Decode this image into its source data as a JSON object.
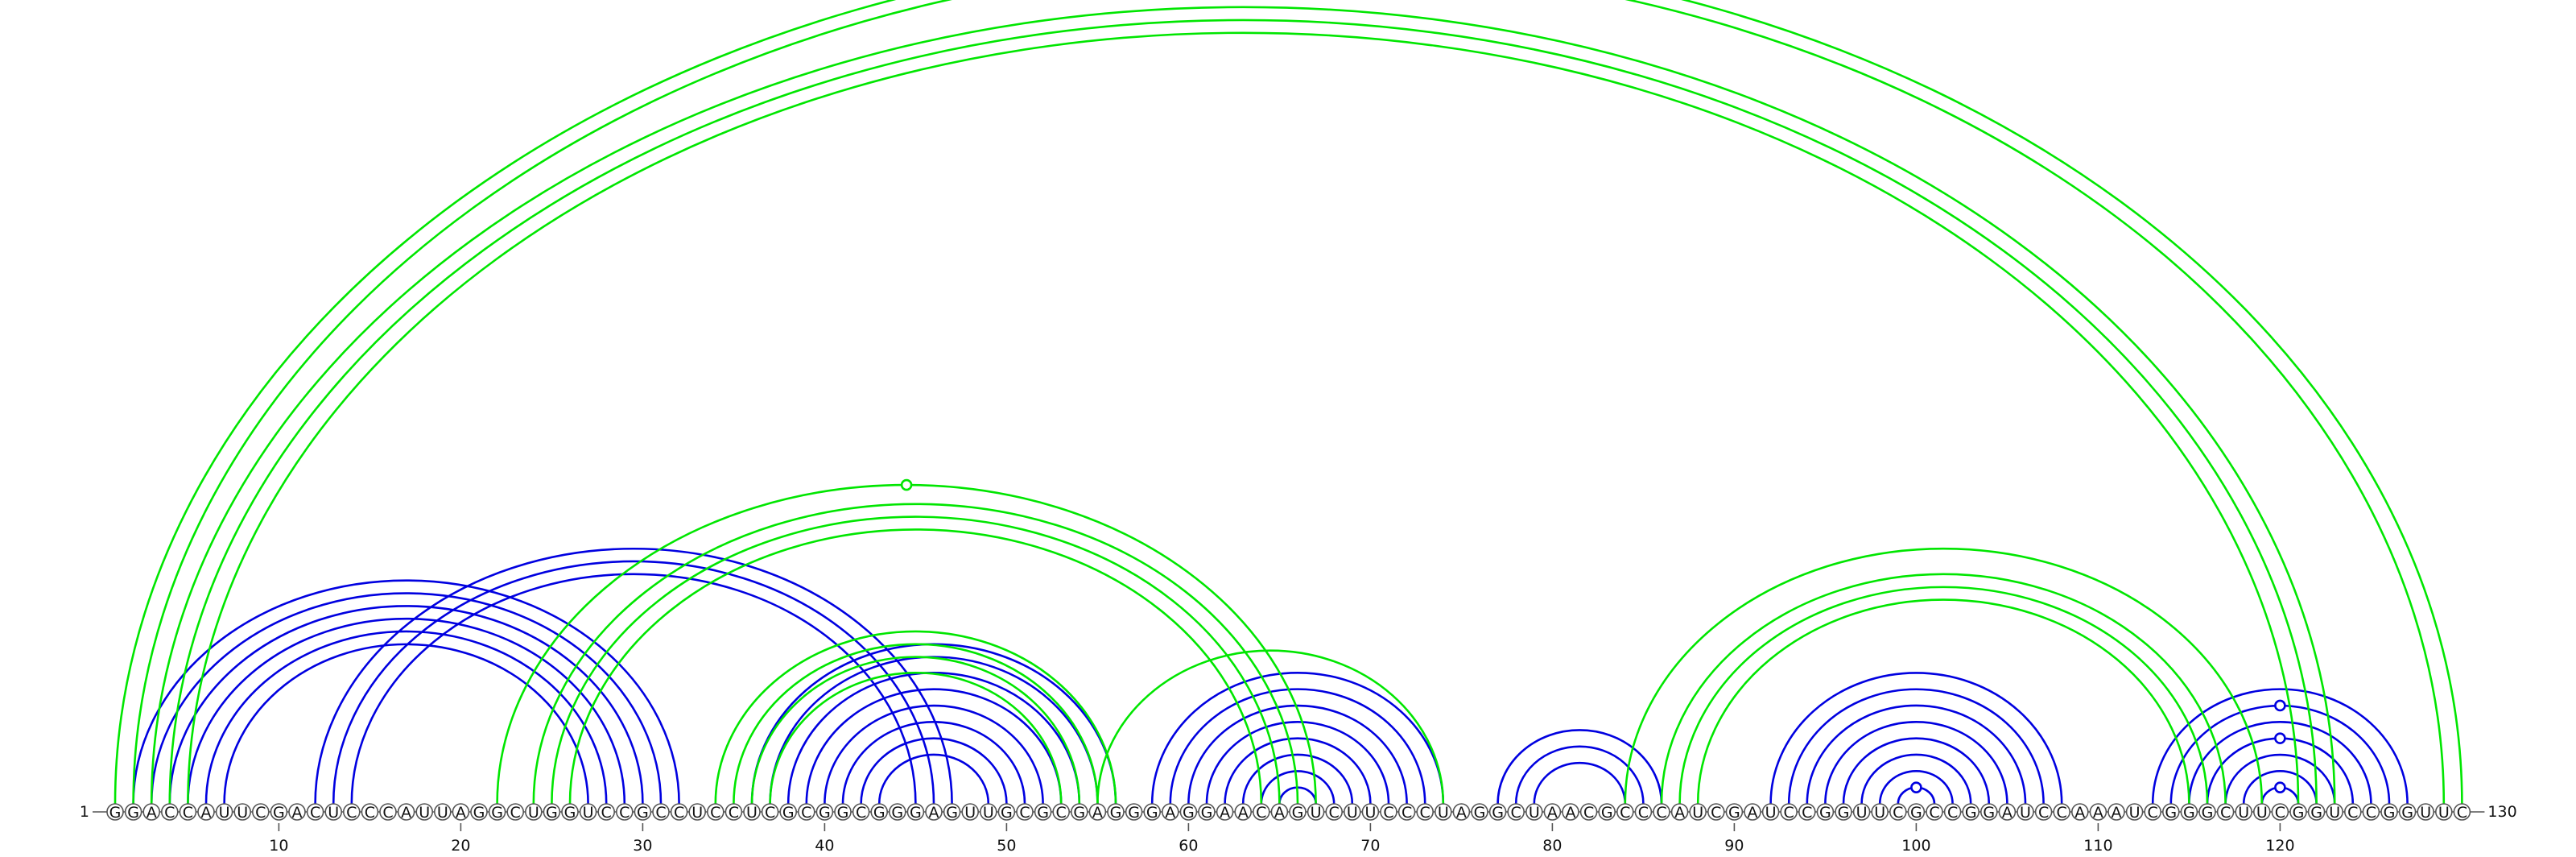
{
  "sequence": "GGACCAUUCGACUCCCAUUAGGCUGGUCCGCCUCCUCGCGGCGGGAGUUGCGCGAGGGAGGAACAGUCUUCCCUAGGCUAACGCCCAUCGAUCCGGUUCGCCGGAUCCAAAUCGGGCUUCGGUCCGGUUC",
  "start_label": "1",
  "end_label": "130",
  "tick_labels": [
    "10",
    "20",
    "30",
    "40",
    "50",
    "60",
    "70",
    "80",
    "90",
    "100",
    "110",
    "120"
  ],
  "colors": {
    "secondary": "#0000e0",
    "tertiary": "#00e600"
  },
  "chart_data": {
    "type": "arc-diagram",
    "length": 130,
    "tick_every": 10,
    "blue_pairs": [
      [
        2,
        32
      ],
      [
        3,
        31
      ],
      [
        4,
        30
      ],
      [
        5,
        29
      ],
      [
        6,
        28
      ],
      [
        7,
        27
      ],
      [
        12,
        47
      ],
      [
        13,
        46
      ],
      [
        14,
        45
      ],
      [
        36,
        56
      ],
      [
        37,
        55
      ],
      [
        38,
        54
      ],
      [
        39,
        53
      ],
      [
        40,
        52
      ],
      [
        41,
        51
      ],
      [
        42,
        50
      ],
      [
        43,
        49
      ],
      [
        58,
        74
      ],
      [
        59,
        73
      ],
      [
        60,
        72
      ],
      [
        61,
        71
      ],
      [
        62,
        70
      ],
      [
        63,
        69
      ],
      [
        64,
        68
      ],
      [
        65,
        67
      ],
      [
        77,
        86
      ],
      [
        78,
        85
      ],
      [
        79,
        84
      ],
      [
        92,
        108
      ],
      [
        93,
        107
      ],
      [
        94,
        106
      ],
      [
        95,
        105
      ],
      [
        96,
        104
      ],
      [
        97,
        103
      ],
      [
        98,
        102
      ],
      [
        99,
        101
      ],
      [
        113,
        127
      ],
      [
        114,
        126
      ],
      [
        115,
        125
      ],
      [
        116,
        124
      ],
      [
        117,
        123
      ],
      [
        118,
        122
      ],
      [
        119,
        121
      ]
    ],
    "green_pairs": [
      [
        1,
        130
      ],
      [
        2,
        129
      ],
      [
        3,
        123
      ],
      [
        4,
        122
      ],
      [
        5,
        121
      ],
      [
        22,
        67
      ],
      [
        24,
        66
      ],
      [
        25,
        65
      ],
      [
        26,
        64
      ],
      [
        34,
        56
      ],
      [
        35,
        55
      ],
      [
        36,
        54
      ],
      [
        37,
        53
      ],
      [
        55,
        74
      ],
      [
        84,
        119
      ],
      [
        86,
        117
      ],
      [
        87,
        116
      ],
      [
        88,
        115
      ]
    ],
    "blue_markers": [
      [
        64,
        2
      ],
      [
        99,
        0
      ],
      [
        120,
        0
      ],
      [
        120,
        3
      ],
      [
        120,
        5
      ]
    ],
    "green_markers": [
      [
        66,
        0
      ],
      [
        45,
        0
      ]
    ]
  }
}
